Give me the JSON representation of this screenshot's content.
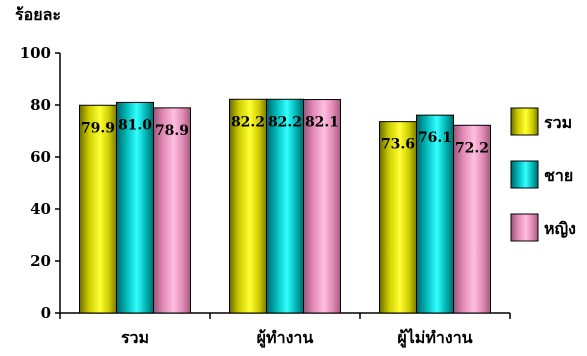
{
  "chart_data": {
    "type": "bar",
    "ylabel": "ร้อยละ",
    "ylim": [
      0,
      100
    ],
    "yticks": [
      0,
      20,
      40,
      60,
      80,
      100
    ],
    "grid": false,
    "legend_position": "right",
    "categories": [
      "รวม",
      "ผู้ทำงาน",
      "ผู้ไม่ทำงาน"
    ],
    "series": [
      {
        "name": "รวม",
        "color": "#ffff00",
        "values": [
          79.9,
          82.2,
          73.6
        ]
      },
      {
        "name": "ชาย",
        "color": "#00cccc",
        "values": [
          81.0,
          82.2,
          76.1
        ]
      },
      {
        "name": "หญิง",
        "color": "#ff99cc",
        "values": [
          78.9,
          82.1,
          72.2
        ]
      }
    ]
  }
}
